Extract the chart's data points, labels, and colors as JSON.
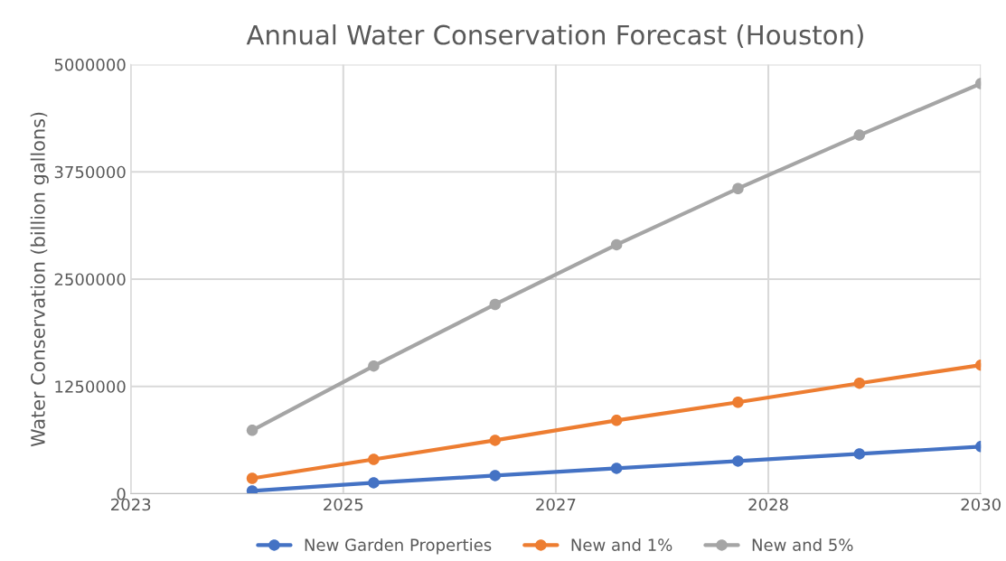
{
  "chart_data": {
    "type": "line",
    "title": "Annual Water Conservation Forecast (Houston)",
    "ylabel": "Water Conservation (billion gallons)",
    "x": [
      2024,
      2025,
      2026,
      2027,
      2028,
      2029,
      2030
    ],
    "series": [
      {
        "name": "New Garden Properties",
        "color": "#4472c4",
        "values": [
          32000,
          127000,
          211000,
          295000,
          380000,
          464000,
          549000
        ]
      },
      {
        "name": "New and 1%",
        "color": "#ed7d31",
        "values": [
          179000,
          400000,
          622000,
          854000,
          1065000,
          1287000,
          1498000
        ]
      },
      {
        "name": "New and 5%",
        "color": "#a5a5a5",
        "values": [
          738000,
          1487000,
          2205000,
          2900000,
          3555000,
          4177000,
          4778000
        ]
      }
    ],
    "xlim": [
      2023,
      2030
    ],
    "xticks": [
      {
        "value": 2023,
        "label": "2023"
      },
      {
        "value": 2024.75,
        "label": "2025"
      },
      {
        "value": 2026.5,
        "label": "2027"
      },
      {
        "value": 2028.25,
        "label": "2028"
      },
      {
        "value": 2030,
        "label": "2030"
      }
    ],
    "ylim": [
      0,
      5000000
    ],
    "yticks": [
      0,
      1250000,
      2500000,
      3750000,
      5000000
    ],
    "grid": true,
    "legend": "bottom",
    "marker": "circle",
    "line_style": "solid"
  }
}
